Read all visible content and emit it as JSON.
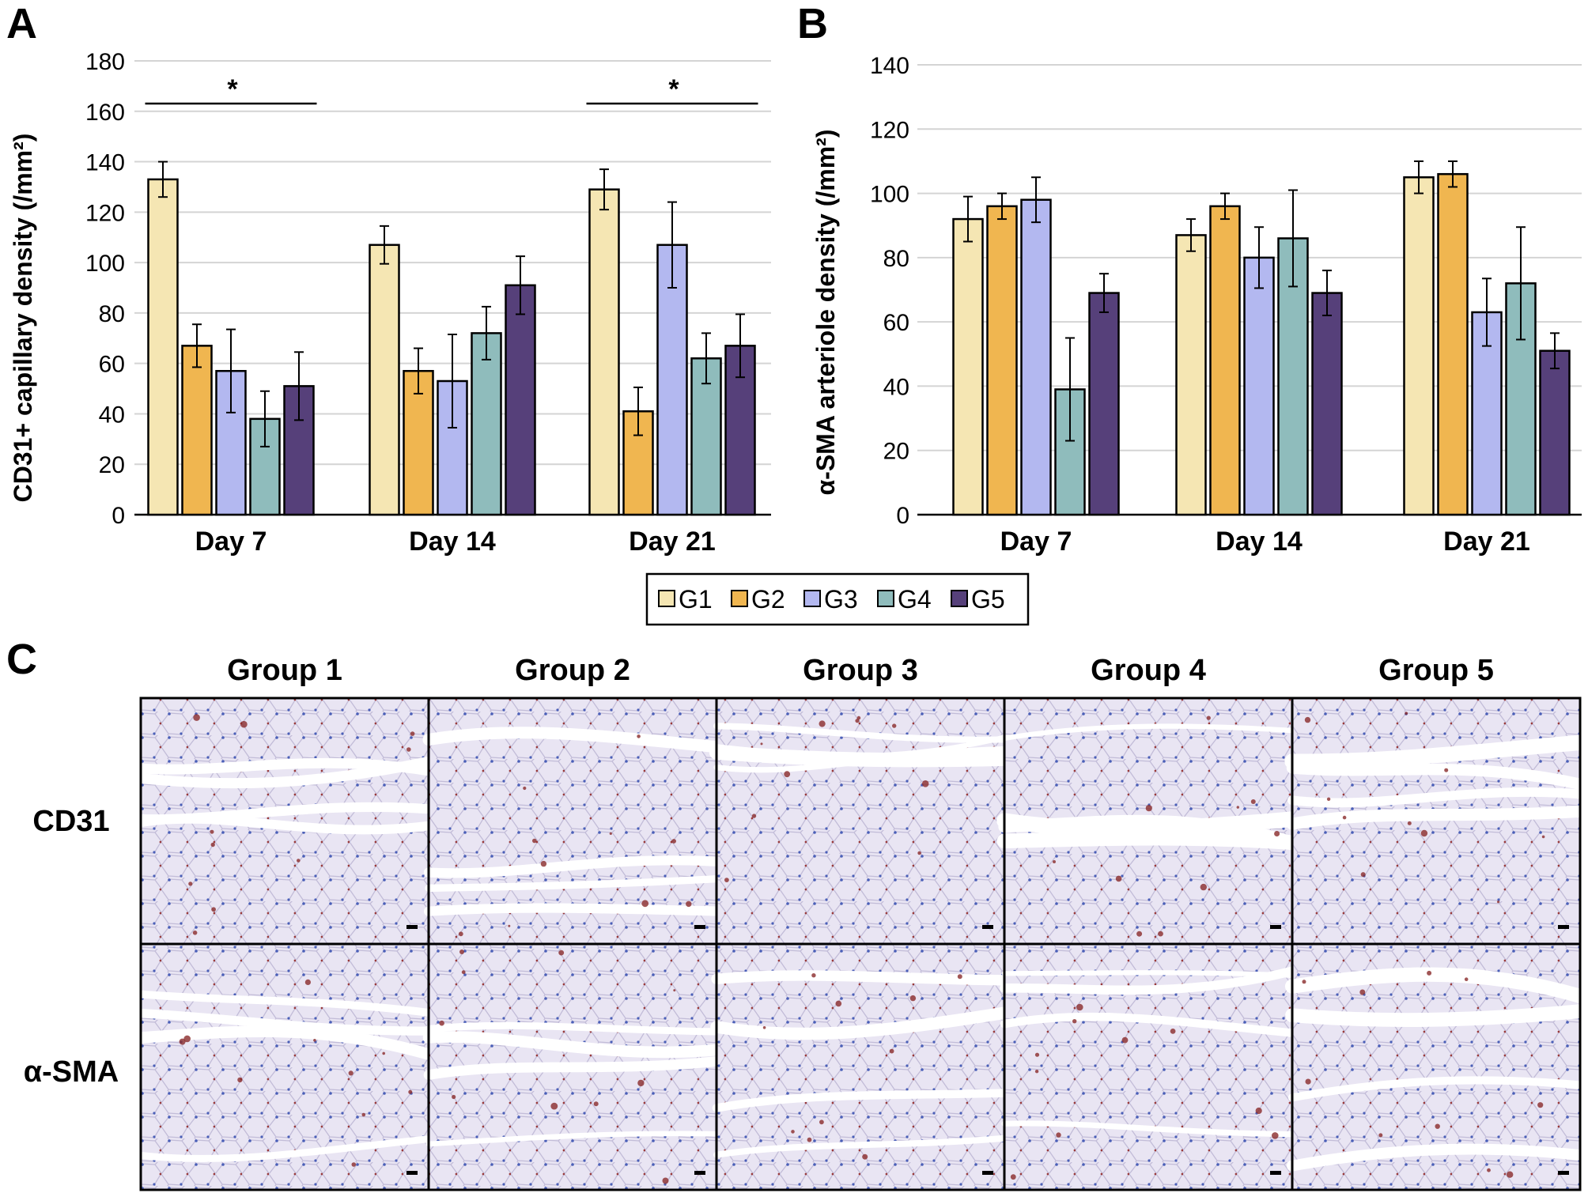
{
  "colors": {
    "G1": "#f5e6b3",
    "G2": "#f0b650",
    "G3": "#b3b8f0",
    "G4": "#8fbcbc",
    "G5": "#56407a",
    "grid": "#d4d4d4",
    "tissue": "#e6e2f2",
    "stroma": "#ffffff"
  },
  "legend": [
    "G1",
    "G2",
    "G3",
    "G4",
    "G5"
  ],
  "chart_data": [
    {
      "panel": "A",
      "type": "bar",
      "ylabel": "CD31+ capillary density (/mm²)",
      "ylim": [
        0,
        180
      ],
      "yticks": [
        0,
        20,
        40,
        60,
        80,
        100,
        120,
        140,
        160,
        180
      ],
      "categories": [
        "Day 7",
        "Day 14",
        "Day 21"
      ],
      "series": [
        {
          "name": "G1",
          "values": [
            133,
            107,
            129
          ],
          "errors": [
            7,
            7.5,
            8
          ]
        },
        {
          "name": "G2",
          "values": [
            67,
            57,
            41
          ],
          "errors": [
            8.5,
            9,
            9.5
          ]
        },
        {
          "name": "G3",
          "values": [
            57,
            53,
            107
          ],
          "errors": [
            16.5,
            18.5,
            17
          ]
        },
        {
          "name": "G4",
          "values": [
            38,
            72,
            62
          ],
          "errors": [
            11,
            10.5,
            10
          ]
        },
        {
          "name": "G5",
          "values": [
            51,
            91,
            67
          ],
          "errors": [
            13.5,
            11.5,
            12.5
          ]
        }
      ],
      "significance": [
        {
          "category": "Day 7",
          "label": "*"
        },
        {
          "category": "Day 21",
          "label": "*"
        }
      ]
    },
    {
      "panel": "B",
      "type": "bar",
      "ylabel": "α-SMA arteriole density (/mm²)",
      "ylim": [
        0,
        140
      ],
      "yticks": [
        0,
        20,
        40,
        60,
        80,
        100,
        120,
        140
      ],
      "categories": [
        "Day 7",
        "Day 14",
        "Day 21"
      ],
      "series": [
        {
          "name": "G1",
          "values": [
            92,
            87,
            105
          ],
          "errors": [
            7,
            5,
            5
          ]
        },
        {
          "name": "G2",
          "values": [
            96,
            96,
            106
          ],
          "errors": [
            4,
            4,
            4
          ]
        },
        {
          "name": "G3",
          "values": [
            98,
            80,
            63
          ],
          "errors": [
            7,
            9.5,
            10.5
          ]
        },
        {
          "name": "G4",
          "values": [
            39,
            86,
            72
          ],
          "errors": [
            16,
            15,
            17.5
          ]
        },
        {
          "name": "G5",
          "values": [
            69,
            69,
            51
          ],
          "errors": [
            6,
            7,
            5.5
          ]
        }
      ]
    }
  ],
  "histology": {
    "panel": "C",
    "columns": [
      "Group 1",
      "Group 2",
      "Group 3",
      "Group 4",
      "Group 5"
    ],
    "rows": [
      "CD31",
      "α-SMA"
    ]
  }
}
